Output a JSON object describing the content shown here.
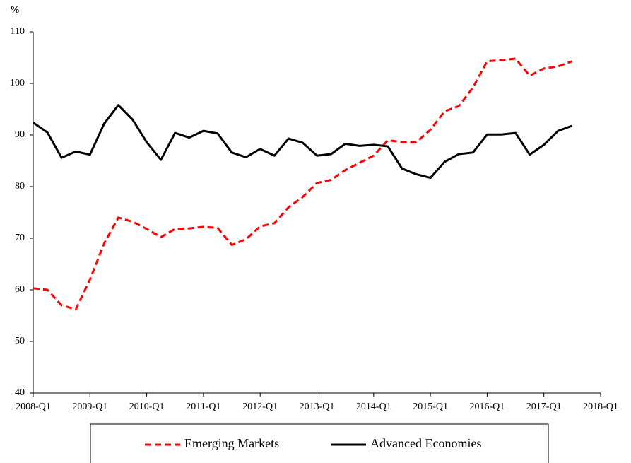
{
  "chart_data": {
    "type": "line",
    "y_label": "%",
    "x": [
      2008,
      2008.25,
      2008.5,
      2008.75,
      2009,
      2009.25,
      2009.5,
      2009.75,
      2010,
      2010.25,
      2010.5,
      2010.75,
      2011,
      2011.25,
      2011.5,
      2011.75,
      2012,
      2012.25,
      2012.5,
      2012.75,
      2013,
      2013.25,
      2013.5,
      2013.75,
      2014,
      2014.25,
      2014.5,
      2014.75,
      2015,
      2015.25,
      2015.5,
      2015.75,
      2016,
      2016.25,
      2016.5,
      2016.75,
      2017,
      2017.25,
      2017.5
    ],
    "series": [
      {
        "name": "Emerging Markets",
        "color": "#ff0000",
        "dash": true,
        "values": [
          60.3,
          60,
          57,
          56.2,
          62,
          69,
          74,
          73.2,
          71.8,
          70.2,
          71.8,
          71.9,
          72.2,
          72,
          68.7,
          69.8,
          72.3,
          72.9,
          76,
          78,
          80.7,
          81.3,
          83.2,
          84.6,
          86,
          89,
          88.6,
          88.6,
          91,
          94.6,
          95.6,
          99.2,
          104.3,
          104.5,
          104.8,
          101.5,
          102.9,
          103.3,
          104.3
        ]
      },
      {
        "name": "Advanced Economies",
        "color": "#000000",
        "dash": false,
        "values": [
          92.4,
          90.5,
          85.6,
          86.8,
          86.2,
          92.2,
          95.8,
          93,
          88.6,
          85.2,
          90.4,
          89.5,
          90.8,
          90.3,
          86.6,
          85.7,
          87.3,
          86,
          89.3,
          88.5,
          86,
          86.3,
          88.3,
          87.9,
          88.1,
          87.8,
          83.5,
          82.4,
          81.7,
          84.8,
          86.3,
          86.6,
          90.1,
          90.1,
          90.4,
          86.2,
          88.1,
          90.8,
          91.8
        ]
      }
    ],
    "xlim": [
      2008,
      2018
    ],
    "xticks": [
      {
        "value": 2008,
        "label": "2008-Q1"
      },
      {
        "value": 2009,
        "label": "2009-Q1"
      },
      {
        "value": 2010,
        "label": "2010-Q1"
      },
      {
        "value": 2011,
        "label": "2011-Q1"
      },
      {
        "value": 2012,
        "label": "2012-Q1"
      },
      {
        "value": 2013,
        "label": "2013-Q1"
      },
      {
        "value": 2014,
        "label": "2014-Q1"
      },
      {
        "value": 2015,
        "label": "2015-Q1"
      },
      {
        "value": 2016,
        "label": "2016-Q1"
      },
      {
        "value": 2017,
        "label": "2017-Q1"
      },
      {
        "value": 2018,
        "label": "2018-Q1"
      }
    ],
    "ylim": [
      40,
      110
    ],
    "yticks": [
      40,
      50,
      60,
      70,
      80,
      90,
      100,
      110
    ],
    "grid": false,
    "legend": "bottom"
  }
}
